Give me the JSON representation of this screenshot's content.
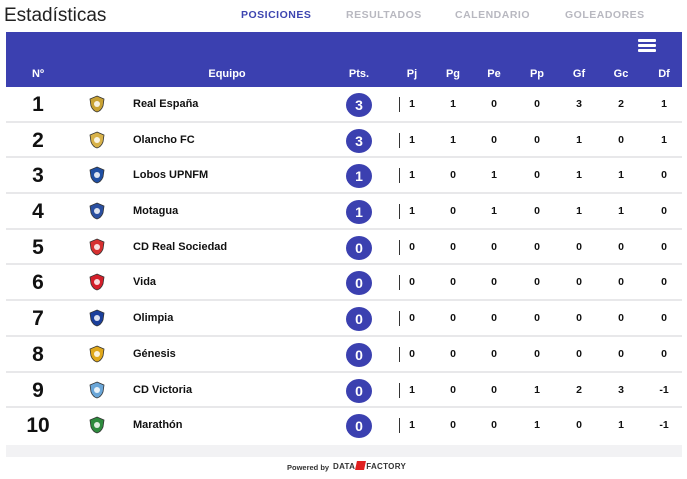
{
  "page": {
    "title": "Estadísticas"
  },
  "tabs": [
    {
      "label": "POSICIONES",
      "active": true
    },
    {
      "label": "RESULTADOS",
      "active": false
    },
    {
      "label": "CALENDARIO",
      "active": false
    },
    {
      "label": "GOLEADORES",
      "active": false
    }
  ],
  "colors": {
    "accent": "#3b40b0",
    "row_divider": "#e8e8ea",
    "tab_inactive": "#b8b8c0"
  },
  "table": {
    "menu_icon": "hamburger-menu-icon",
    "headers": {
      "pos": "Nº",
      "team": "Equipo",
      "pts": "Pts.",
      "pj": "Pj",
      "pg": "Pg",
      "pe": "Pe",
      "pp": "Pp",
      "gf": "Gf",
      "gc": "Gc",
      "df": "Df"
    },
    "rows": [
      {
        "pos": "1",
        "team": "Real España",
        "logo": "real-espana-logo",
        "pts": "3",
        "pj": "1",
        "pg": "1",
        "pe": "0",
        "pp": "0",
        "gf": "3",
        "gc": "2",
        "df": "1"
      },
      {
        "pos": "2",
        "team": "Olancho FC",
        "logo": "olancho-fc-logo",
        "pts": "3",
        "pj": "1",
        "pg": "1",
        "pe": "0",
        "pp": "0",
        "gf": "1",
        "gc": "0",
        "df": "1"
      },
      {
        "pos": "3",
        "team": "Lobos UPNFM",
        "logo": "lobos-upnfm-logo",
        "pts": "1",
        "pj": "1",
        "pg": "0",
        "pe": "1",
        "pp": "0",
        "gf": "1",
        "gc": "1",
        "df": "0"
      },
      {
        "pos": "4",
        "team": "Motagua",
        "logo": "motagua-logo",
        "pts": "1",
        "pj": "1",
        "pg": "0",
        "pe": "1",
        "pp": "0",
        "gf": "1",
        "gc": "1",
        "df": "0"
      },
      {
        "pos": "5",
        "team": "CD Real Sociedad",
        "logo": "real-sociedad-logo",
        "pts": "0",
        "pj": "0",
        "pg": "0",
        "pe": "0",
        "pp": "0",
        "gf": "0",
        "gc": "0",
        "df": "0"
      },
      {
        "pos": "6",
        "team": "Vida",
        "logo": "vida-logo",
        "pts": "0",
        "pj": "0",
        "pg": "0",
        "pe": "0",
        "pp": "0",
        "gf": "0",
        "gc": "0",
        "df": "0"
      },
      {
        "pos": "7",
        "team": "Olimpia",
        "logo": "olimpia-logo",
        "pts": "0",
        "pj": "0",
        "pg": "0",
        "pe": "0",
        "pp": "0",
        "gf": "0",
        "gc": "0",
        "df": "0"
      },
      {
        "pos": "8",
        "team": "Génesis",
        "logo": "genesis-logo",
        "pts": "0",
        "pj": "0",
        "pg": "0",
        "pe": "0",
        "pp": "0",
        "gf": "0",
        "gc": "0",
        "df": "0"
      },
      {
        "pos": "9",
        "team": "CD Victoria",
        "logo": "victoria-logo",
        "pts": "0",
        "pj": "1",
        "pg": "0",
        "pe": "0",
        "pp": "1",
        "gf": "2",
        "gc": "3",
        "df": "-1"
      },
      {
        "pos": "10",
        "team": "Marathón",
        "logo": "marathon-logo",
        "pts": "0",
        "pj": "1",
        "pg": "0",
        "pe": "0",
        "pp": "1",
        "gf": "0",
        "gc": "1",
        "df": "-1"
      }
    ]
  },
  "footer": {
    "powered": "Powered by",
    "brand_left": "DATA",
    "brand_right": "FACTORY"
  }
}
